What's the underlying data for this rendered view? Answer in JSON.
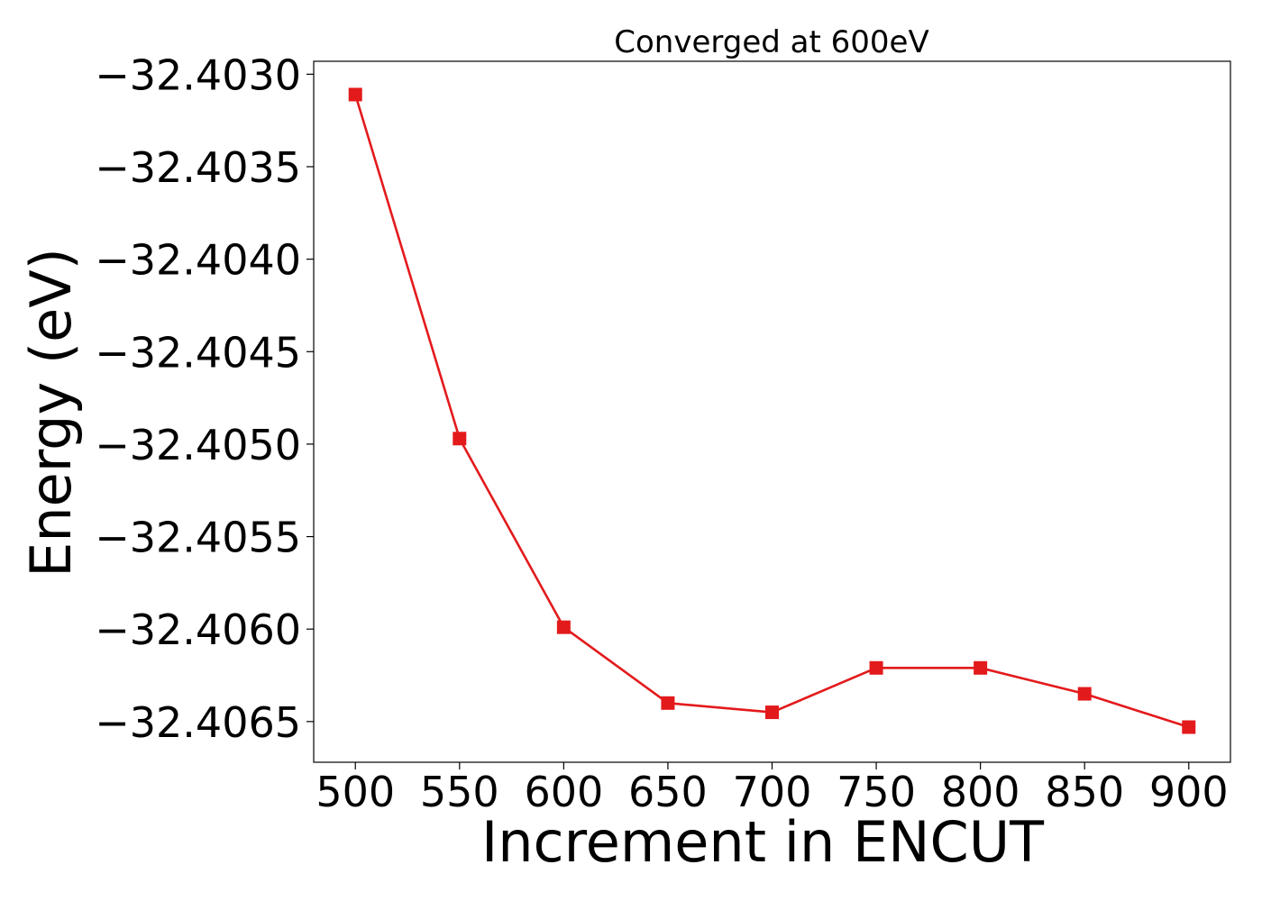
{
  "chart_data": {
    "type": "line",
    "title": "Converged at 600eV",
    "xlabel": "Increment in ENCUT",
    "ylabel": "Energy (eV)",
    "x": [
      500,
      550,
      600,
      650,
      700,
      750,
      800,
      850,
      900
    ],
    "xlim": [
      480,
      920
    ],
    "ylim": [
      -32.40672,
      -32.40293
    ],
    "x_ticks": [
      500,
      550,
      600,
      650,
      700,
      750,
      800,
      850,
      900
    ],
    "x_tick_labels": [
      "500",
      "550",
      "600",
      "650",
      "700",
      "750",
      "800",
      "850",
      "900"
    ],
    "y_ticks": [
      -32.403,
      -32.4035,
      -32.404,
      -32.4045,
      -32.405,
      -32.4055,
      -32.406,
      -32.4065
    ],
    "y_tick_labels": [
      "−32.4030",
      "−32.4035",
      "−32.4040",
      "−32.4045",
      "−32.4050",
      "−32.4055",
      "−32.4060",
      "−32.4065"
    ],
    "grid": false,
    "legend": "none",
    "series": [
      {
        "marker": "square",
        "color": "#e31a1c",
        "values": [
          -32.40311,
          -32.40497,
          -32.40599,
          -32.4064,
          -32.40645,
          -32.40621,
          -32.40621,
          -32.40635,
          -32.40653
        ]
      }
    ]
  }
}
